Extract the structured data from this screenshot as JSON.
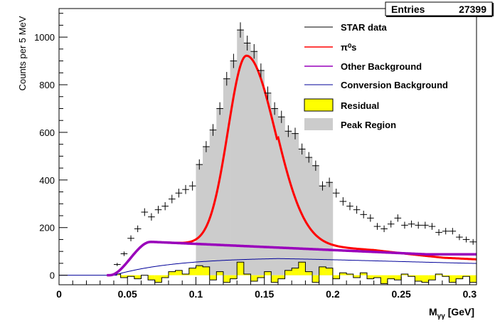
{
  "chart_data": {
    "type": "histogram",
    "xlabel": "M",
    "xlabel_subscript": "γγ",
    "xlabel_unit": "[GeV]",
    "ylabel": "Counts per 5 MeV",
    "xlim": [
      0,
      0.305
    ],
    "ylim": [
      -40,
      1120
    ],
    "x_ticks": [
      0,
      0.05,
      0.1,
      0.15,
      0.2,
      0.25,
      0.3
    ],
    "x_tick_labels": [
      "0",
      "0.05",
      "0.1",
      "0.15",
      "0.2",
      "0.25",
      "0.3"
    ],
    "y_ticks": [
      0,
      200,
      400,
      600,
      800,
      1000
    ],
    "y_tick_labels": [
      "0",
      "200",
      "400",
      "600",
      "800",
      "1000"
    ],
    "stats_box": {
      "label": "Entries",
      "value": "27399"
    },
    "peak_region": [
      0.1,
      0.2
    ],
    "bin_width": 0.005,
    "star_data": {
      "x": [
        0.0425,
        0.0475,
        0.0525,
        0.0575,
        0.0625,
        0.0675,
        0.0725,
        0.0775,
        0.0825,
        0.0875,
        0.0925,
        0.0975,
        0.1025,
        0.1075,
        0.1125,
        0.1175,
        0.1225,
        0.1275,
        0.1325,
        0.1375,
        0.1425,
        0.1475,
        0.1525,
        0.1575,
        0.1625,
        0.1675,
        0.1725,
        0.1775,
        0.1825,
        0.1875,
        0.1925,
        0.1975,
        0.2025,
        0.2075,
        0.2125,
        0.2175,
        0.2225,
        0.2275,
        0.2325,
        0.2375,
        0.2425,
        0.2475,
        0.2525,
        0.2575,
        0.2625,
        0.2675,
        0.2725,
        0.2775,
        0.2825,
        0.2875,
        0.2925,
        0.2975,
        0.3025
      ],
      "y": [
        45,
        90,
        155,
        195,
        265,
        245,
        275,
        290,
        320,
        345,
        360,
        375,
        465,
        540,
        610,
        700,
        825,
        900,
        1030,
        975,
        940,
        860,
        765,
        700,
        665,
        605,
        595,
        530,
        495,
        460,
        375,
        390,
        345,
        310,
        290,
        275,
        255,
        240,
        205,
        195,
        215,
        240,
        210,
        215,
        210,
        210,
        205,
        180,
        185,
        185,
        160,
        150,
        140
      ]
    },
    "peak_histogram": {
      "x": [
        0.1025,
        0.1075,
        0.1125,
        0.1175,
        0.1225,
        0.1275,
        0.1325,
        0.1375,
        0.1425,
        0.1475,
        0.1525,
        0.1575,
        0.1625,
        0.1675,
        0.1725,
        0.1775,
        0.1825,
        0.1875,
        0.1925,
        0.1975
      ],
      "y": [
        465,
        540,
        610,
        700,
        825,
        900,
        1030,
        975,
        940,
        860,
        765,
        700,
        665,
        605,
        595,
        530,
        495,
        460,
        375,
        390
      ]
    },
    "residual": {
      "x": [
        0.0425,
        0.0475,
        0.0525,
        0.0575,
        0.0625,
        0.0675,
        0.0725,
        0.0775,
        0.0825,
        0.0875,
        0.0925,
        0.0975,
        0.1025,
        0.1075,
        0.1125,
        0.1175,
        0.1225,
        0.1275,
        0.1325,
        0.1375,
        0.1425,
        0.1475,
        0.1525,
        0.1575,
        0.1625,
        0.1675,
        0.1725,
        0.1775,
        0.1825,
        0.1875,
        0.1925,
        0.1975,
        0.2025,
        0.2075,
        0.2125,
        0.2175,
        0.2225,
        0.2275,
        0.2325,
        0.2375,
        0.2425,
        0.2475,
        0.2525,
        0.2575,
        0.2625,
        0.2675,
        0.2725,
        0.2775,
        0.2825,
        0.2875,
        0.2925,
        0.2975,
        0.3025
      ],
      "y": [
        5,
        -10,
        -5,
        -15,
        0,
        -20,
        -30,
        -10,
        15,
        20,
        5,
        30,
        40,
        35,
        -20,
        15,
        -30,
        -15,
        55,
        5,
        -25,
        -10,
        15,
        -30,
        -15,
        20,
        30,
        55,
        15,
        -30,
        35,
        30,
        -15,
        10,
        5,
        -10,
        10,
        -15,
        -10,
        -35,
        -15,
        -20,
        5,
        -5,
        -25,
        -30,
        -20,
        5,
        -5,
        -30,
        -15,
        -5,
        -30
      ]
    },
    "series": [
      {
        "name": "STAR data",
        "color": "#000000",
        "style": "crosses"
      },
      {
        "name": "π⁰s",
        "color": "#ff0000",
        "style": "line"
      },
      {
        "name": "Other Background",
        "color": "#9900bb",
        "style": "line"
      },
      {
        "name": "Conversion Background",
        "color": "#000099",
        "style": "line"
      },
      {
        "name": "Residual",
        "color": "#ffff00",
        "style": "fill"
      },
      {
        "name": "Peak Region",
        "color": "#cccccc",
        "style": "fill"
      }
    ],
    "legend_position": "top-right"
  }
}
